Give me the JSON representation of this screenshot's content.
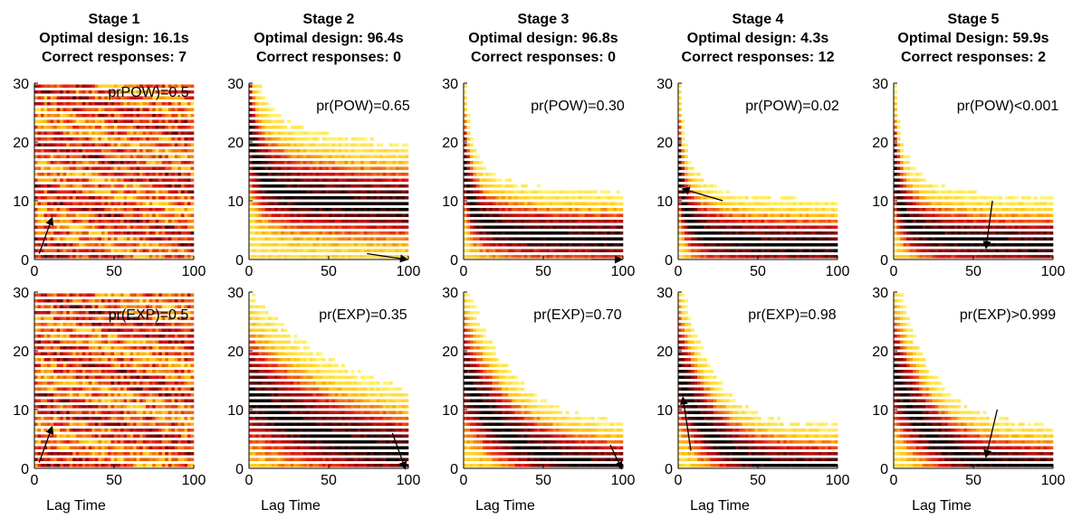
{
  "figure": {
    "xlabel": "Lag Time"
  },
  "colors": {
    "heat_low": "#ffff66",
    "heat_mid": "#ff3300",
    "heat_high": "#000000",
    "axis": "#000000",
    "arrow": "#000000"
  },
  "chart_data": [
    {
      "type": "heatmap",
      "stage_index": 0,
      "row": "POW",
      "title_lines": [
        "Stage 1",
        "Optimal design: 16.1s",
        "Correct responses: 7"
      ],
      "annotation": "prPOW)=0.5",
      "xlim": [
        0,
        100
      ],
      "ylim": [
        0,
        30
      ],
      "xticks": [
        0,
        50,
        100
      ],
      "yticks": [
        0,
        10,
        20,
        30
      ],
      "design_x": 16.1,
      "design_y": 7,
      "profile": "uniform",
      "arrow": {
        "from": [
          3,
          1
        ],
        "to": [
          11,
          7
        ]
      }
    },
    {
      "type": "heatmap",
      "stage_index": 1,
      "row": "POW",
      "title_lines": [
        "Stage 2",
        "Optimal design: 96.4s",
        "Correct responses: 0"
      ],
      "annotation": "pr(POW)=0.65",
      "xlim": [
        0,
        100
      ],
      "ylim": [
        0,
        30
      ],
      "xticks": [
        0,
        50,
        100
      ],
      "yticks": [
        0,
        10,
        20,
        30
      ],
      "design_x": 96.4,
      "design_y": 0,
      "profile": "pow",
      "params": {
        "plateau": 8,
        "k": 0.7,
        "amp": 18,
        "spread": 4
      },
      "arrow": {
        "from": [
          74,
          1
        ],
        "to": [
          99,
          0
        ]
      }
    },
    {
      "type": "heatmap",
      "stage_index": 2,
      "row": "POW",
      "title_lines": [
        "Stage 3",
        "Optimal design: 96.8s",
        "Correct responses: 0"
      ],
      "annotation": "pr(POW)=0.30",
      "xlim": [
        0,
        100
      ],
      "ylim": [
        0,
        30
      ],
      "xticks": [
        0,
        50,
        100
      ],
      "yticks": [
        0,
        10,
        20,
        30
      ],
      "design_x": 96.8,
      "design_y": 0,
      "profile": "pow",
      "params": {
        "plateau": 3,
        "k": 0.9,
        "amp": 17,
        "spread": 3
      },
      "arrow": {
        "from": [
          80,
          0
        ],
        "to": [
          99,
          0
        ]
      }
    },
    {
      "type": "heatmap",
      "stage_index": 3,
      "row": "POW",
      "title_lines": [
        "Stage 4",
        "Optimal design: 4.3s",
        "Correct responses: 12"
      ],
      "annotation": "pr(POW)=0.02",
      "xlim": [
        0,
        100
      ],
      "ylim": [
        0,
        30
      ],
      "xticks": [
        0,
        50,
        100
      ],
      "yticks": [
        0,
        10,
        20,
        30
      ],
      "design_x": 4.3,
      "design_y": 12,
      "profile": "pow",
      "params": {
        "plateau": 2,
        "k": 1.0,
        "amp": 18,
        "spread": 3
      },
      "arrow": {
        "from": [
          28,
          10
        ],
        "to": [
          3,
          12
        ]
      }
    },
    {
      "type": "heatmap",
      "stage_index": 4,
      "row": "POW",
      "title_lines": [
        "Stage 5",
        "Optimal Design: 59.9s",
        "Correct responses: 2"
      ],
      "annotation": "pr(POW)<0.001",
      "xlim": [
        0,
        100
      ],
      "ylim": [
        0,
        30
      ],
      "xticks": [
        0,
        50,
        100
      ],
      "yticks": [
        0,
        10,
        20,
        30
      ],
      "design_x": 59.9,
      "design_y": 2,
      "profile": "pow",
      "params": {
        "plateau": 2,
        "k": 0.9,
        "amp": 18,
        "spread": 3
      },
      "arrow": {
        "from": [
          62,
          10
        ],
        "to": [
          58,
          2
        ]
      }
    },
    {
      "type": "heatmap",
      "stage_index": 0,
      "row": "EXP",
      "title_lines": [],
      "annotation": "pr(EXP)=0.5",
      "xlim": [
        0,
        100
      ],
      "ylim": [
        0,
        30
      ],
      "xticks": [
        0,
        50,
        100
      ],
      "yticks": [
        0,
        10,
        20,
        30
      ],
      "design_x": 16.1,
      "design_y": 7,
      "profile": "uniform",
      "arrow": {
        "from": [
          3,
          1
        ],
        "to": [
          11,
          7
        ]
      }
    },
    {
      "type": "heatmap",
      "stage_index": 1,
      "row": "EXP",
      "title_lines": [],
      "annotation": "pr(EXP)=0.35",
      "xlim": [
        0,
        100
      ],
      "ylim": [
        0,
        30
      ],
      "xticks": [
        0,
        50,
        100
      ],
      "yticks": [
        0,
        10,
        20,
        30
      ],
      "design_x": 96.4,
      "design_y": 0,
      "profile": "exp",
      "params": {
        "plateau": 1,
        "tau": 55,
        "amp": 13,
        "spread": 4
      },
      "arrow": {
        "from": [
          90,
          6
        ],
        "to": [
          98,
          0
        ]
      }
    },
    {
      "type": "heatmap",
      "stage_index": 2,
      "row": "EXP",
      "title_lines": [],
      "annotation": "pr(EXP)=0.70",
      "xlim": [
        0,
        100
      ],
      "ylim": [
        0,
        30
      ],
      "xticks": [
        0,
        50,
        100
      ],
      "yticks": [
        0,
        10,
        20,
        30
      ],
      "design_x": 96.8,
      "design_y": 0,
      "profile": "exp",
      "params": {
        "plateau": 0,
        "tau": 28,
        "amp": 17,
        "spread": 3
      },
      "arrow": {
        "from": [
          92,
          4
        ],
        "to": [
          99,
          0
        ]
      }
    },
    {
      "type": "heatmap",
      "stage_index": 3,
      "row": "EXP",
      "title_lines": [],
      "annotation": "pr(EXP)=0.98",
      "xlim": [
        0,
        100
      ],
      "ylim": [
        0,
        30
      ],
      "xticks": [
        0,
        50,
        100
      ],
      "yticks": [
        0,
        10,
        20,
        30
      ],
      "design_x": 4.3,
      "design_y": 12,
      "profile": "exp",
      "params": {
        "plateau": 0,
        "tau": 20,
        "amp": 18,
        "spread": 3
      },
      "arrow": {
        "from": [
          8,
          3
        ],
        "to": [
          3,
          12
        ]
      }
    },
    {
      "type": "heatmap",
      "stage_index": 4,
      "row": "EXP",
      "title_lines": [],
      "annotation": "pr(EXP)>0.999",
      "xlim": [
        0,
        100
      ],
      "ylim": [
        0,
        30
      ],
      "xticks": [
        0,
        50,
        100
      ],
      "yticks": [
        0,
        10,
        20,
        30
      ],
      "design_x": 59.9,
      "design_y": 2,
      "profile": "exp",
      "params": {
        "plateau": 0,
        "tau": 22,
        "amp": 18,
        "spread": 3
      },
      "arrow": {
        "from": [
          65,
          10
        ],
        "to": [
          58,
          2
        ]
      }
    }
  ]
}
